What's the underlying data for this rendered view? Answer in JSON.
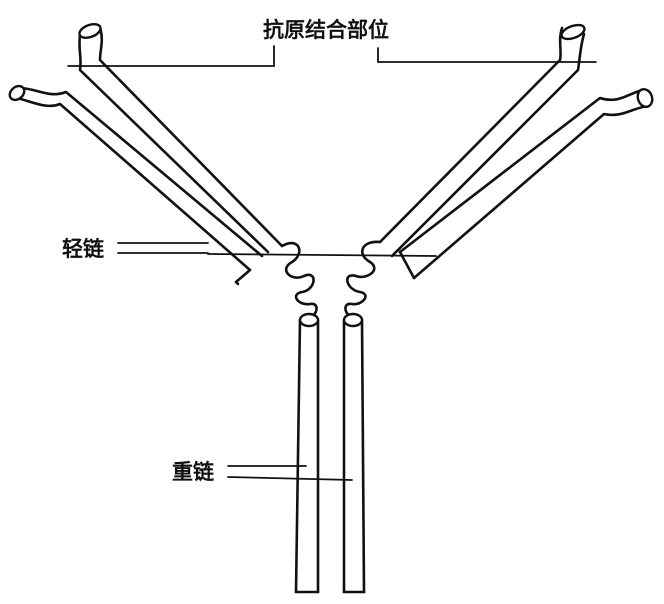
{
  "labels": {
    "antigen_binding_site": "抗原结合部位",
    "light_chain": "轻链",
    "heavy_chain": "重链"
  },
  "colors": {
    "ink": "#111111",
    "background": "#ffffff"
  }
}
